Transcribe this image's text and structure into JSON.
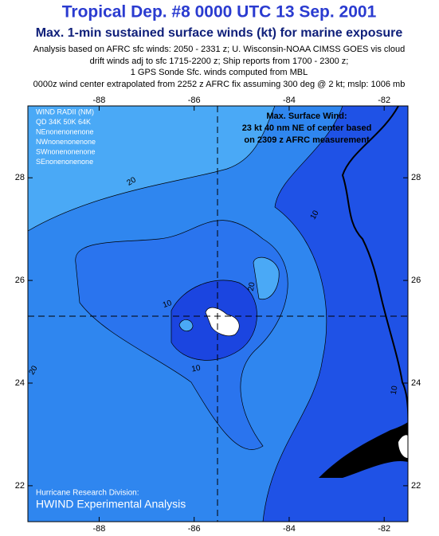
{
  "header": {
    "title": "Tropical Dep. #8 0000 UTC 13 Sep. 2001",
    "subtitle": "Max. 1-min sustained surface winds (kt) for marine exposure",
    "notes": [
      "Analysis based on AFRC sfc winds: 2050 - 2331 z; U. Wisconsin-NOAA CIMSS GOES vis cloud",
      "drift winds adj to sfc 1715-2200 z; Ship reports from  1700 - 2300 z;",
      "1 GPS Sonde Sfc. winds computed from MBL",
      "0000z wind center extrapolated from 2252 z AFRC fix assuming 300 deg @ 2 kt;      mslp: 1006 mb"
    ]
  },
  "map": {
    "xlim": [
      -89.5,
      -81.5
    ],
    "ylim": [
      21.3,
      29.4
    ],
    "xticks": [
      -88,
      -86,
      -84,
      -82
    ],
    "yticks": [
      22,
      24,
      26,
      28
    ],
    "wind_radii": [
      "WIND RADII (NM)",
      "QD 34K 50K 64K",
      "NEnonenonenone",
      "NWnonenonenone",
      "SWnonenonenone",
      "SEnonenonenone"
    ],
    "max_wind": [
      "Max. Surface Wind:",
      "23 kt 40 nm NE of center based",
      "on 2309 z AFRC measurement"
    ],
    "contour_labels": [
      "20",
      "10",
      "20",
      "10",
      "10",
      "20",
      "10"
    ],
    "footer": [
      "Hurricane Research Division:",
      "HWIND Experimental Analysis"
    ]
  }
}
